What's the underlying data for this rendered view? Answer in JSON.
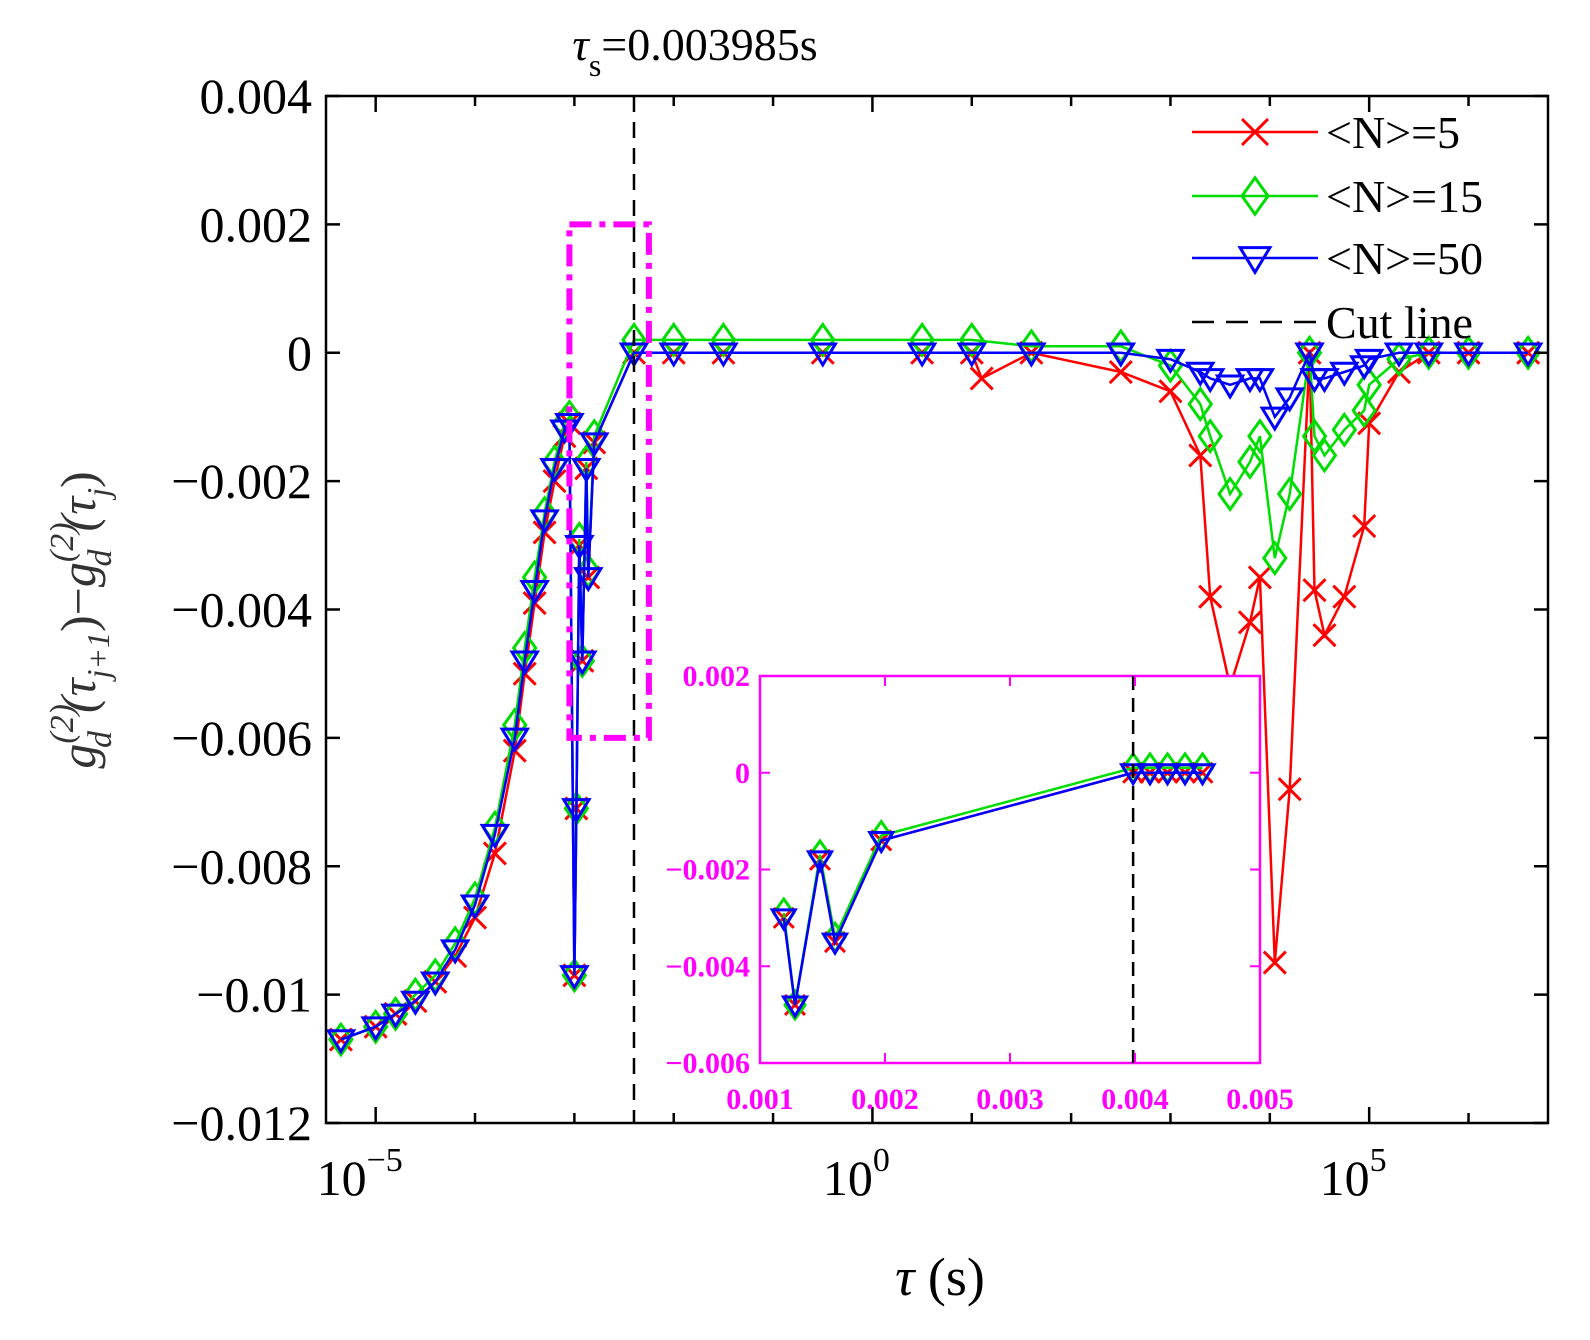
{
  "chart_data": [
    {
      "type": "line",
      "role": "main",
      "title_parts": {
        "tau": "τ",
        "sub": "s",
        "rest": "=0.003985s"
      },
      "xlabel_parts": {
        "tau": "τ",
        "unit": " (s)"
      },
      "ylabel_parts": {
        "g1": "g",
        "sup1": "(2)",
        "sub1": "d",
        "arg1": "(τ",
        "argsub1": "j+1",
        "close1": ")",
        "minus": "−",
        "g2": "g",
        "sup2": "(2)",
        "sub2": "d",
        "arg2": "(τ",
        "argsub2": "j",
        "close2": ")"
      },
      "xscale": "log",
      "xlim_log10": [
        -5.5,
        6.8
      ],
      "ylim": [
        -0.012,
        0.004
      ],
      "x_tick_log10": [
        -5,
        0,
        5
      ],
      "x_tick_base": "10",
      "x_tick_exponents": [
        "−5",
        "0",
        "5"
      ],
      "y_ticks": [
        0.004,
        0.002,
        0,
        -0.002,
        -0.004,
        -0.006,
        -0.008,
        -0.01,
        -0.012
      ],
      "y_tick_labels": [
        "0.004",
        "0.002",
        "0",
        "−0.002",
        "−0.004",
        "−0.006",
        "−0.008",
        "−0.01",
        "−0.012"
      ],
      "cut_line_log10": -2.4,
      "zoom_box": {
        "x_log10": [
          -3.05,
          -2.25
        ],
        "y": [
          -0.006,
          0.002
        ]
      },
      "legend": {
        "position": "top-right",
        "entries": [
          {
            "label": "<N>=5",
            "color": "#ff0000",
            "marker": "x"
          },
          {
            "label": "<N>=15",
            "color": "#00dd00",
            "marker": "diamond"
          },
          {
            "label": "<N>=50",
            "color": "#0000ff",
            "marker": "triangle-down"
          },
          {
            "label": "Cut line",
            "color": "#000000",
            "marker": "dashed"
          }
        ]
      },
      "series": [
        {
          "name": "<N>=5",
          "color": "#ff0000",
          "marker": "x",
          "points": [
            [
              -5.35,
              -0.0107
            ],
            [
              -5.0,
              -0.0105
            ],
            [
              -4.8,
              -0.0103
            ],
            [
              -4.6,
              -0.0101
            ],
            [
              -4.4,
              -0.0098
            ],
            [
              -4.2,
              -0.0094
            ],
            [
              -4.0,
              -0.0088
            ],
            [
              -3.8,
              -0.0078
            ],
            [
              -3.6,
              -0.0062
            ],
            [
              -3.5,
              -0.005
            ],
            [
              -3.4,
              -0.0039
            ],
            [
              -3.3,
              -0.0028
            ],
            [
              -3.2,
              -0.002
            ],
            [
              -3.1,
              -0.0013
            ],
            [
              -3.05,
              -0.0011
            ],
            [
              -3.0,
              -0.0097
            ],
            [
              -2.98,
              -0.0071
            ],
            [
              -2.95,
              -0.003
            ],
            [
              -2.92,
              -0.0048
            ],
            [
              -2.88,
              -0.0018
            ],
            [
              -2.86,
              -0.0035
            ],
            [
              -2.8,
              -0.0014
            ],
            [
              -2.4,
              0.0
            ],
            [
              -2.0,
              0.0
            ],
            [
              -1.5,
              0.0
            ],
            [
              -0.5,
              0.0
            ],
            [
              0.5,
              0.0
            ],
            [
              1.0,
              0.0
            ],
            [
              1.1,
              -0.0004
            ],
            [
              1.6,
              0.0
            ],
            [
              2.5,
              -0.0003
            ],
            [
              3.0,
              -0.0006
            ],
            [
              3.3,
              -0.0016
            ],
            [
              3.4,
              -0.0038
            ],
            [
              3.6,
              -0.0052
            ],
            [
              3.8,
              -0.0042
            ],
            [
              3.9,
              -0.0035
            ],
            [
              4.05,
              -0.0095
            ],
            [
              4.2,
              -0.0068
            ],
            [
              4.4,
              0.0
            ],
            [
              4.45,
              -0.0037
            ],
            [
              4.55,
              -0.0044
            ],
            [
              4.75,
              -0.0038
            ],
            [
              4.95,
              -0.0027
            ],
            [
              5.0,
              -0.0011
            ],
            [
              5.3,
              -0.0003
            ],
            [
              5.6,
              0.0
            ],
            [
              6.0,
              0.0
            ],
            [
              6.6,
              0.0
            ]
          ]
        },
        {
          "name": "<N>=15",
          "color": "#00dd00",
          "marker": "diamond",
          "points": [
            [
              -5.35,
              -0.0107
            ],
            [
              -5.0,
              -0.0105
            ],
            [
              -4.8,
              -0.0103
            ],
            [
              -4.6,
              -0.01
            ],
            [
              -4.4,
              -0.0097
            ],
            [
              -4.2,
              -0.0092
            ],
            [
              -4.0,
              -0.0085
            ],
            [
              -3.8,
              -0.0074
            ],
            [
              -3.6,
              -0.0058
            ],
            [
              -3.5,
              -0.0046
            ],
            [
              -3.4,
              -0.0035
            ],
            [
              -3.3,
              -0.0025
            ],
            [
              -3.2,
              -0.0017
            ],
            [
              -3.1,
              -0.0011
            ],
            [
              -3.05,
              -0.001
            ],
            [
              -3.0,
              -0.0097
            ],
            [
              -2.98,
              -0.0071
            ],
            [
              -2.95,
              -0.0029
            ],
            [
              -2.92,
              -0.0048
            ],
            [
              -2.88,
              -0.0017
            ],
            [
              -2.86,
              -0.0034
            ],
            [
              -2.8,
              -0.0013
            ],
            [
              -2.4,
              0.0002
            ],
            [
              -2.0,
              0.0002
            ],
            [
              -1.5,
              0.0002
            ],
            [
              -0.5,
              0.0002
            ],
            [
              0.5,
              0.0002
            ],
            [
              1.0,
              0.0002
            ],
            [
              1.6,
              0.0001
            ],
            [
              2.5,
              0.0001
            ],
            [
              3.0,
              -0.0002
            ],
            [
              3.3,
              -0.0008
            ],
            [
              3.4,
              -0.0013
            ],
            [
              3.6,
              -0.0022
            ],
            [
              3.8,
              -0.0017
            ],
            [
              3.9,
              -0.0013
            ],
            [
              4.05,
              -0.0032
            ],
            [
              4.2,
              -0.0022
            ],
            [
              4.4,
              0.0
            ],
            [
              4.45,
              -0.0013
            ],
            [
              4.55,
              -0.0016
            ],
            [
              4.75,
              -0.0012
            ],
            [
              4.95,
              -0.0009
            ],
            [
              5.0,
              -0.0005
            ],
            [
              5.3,
              -0.0001
            ],
            [
              5.6,
              0.0
            ],
            [
              6.0,
              0.0
            ],
            [
              6.6,
              0.0
            ]
          ]
        },
        {
          "name": "<N>=50",
          "color": "#0000ff",
          "marker": "triangle-down",
          "points": [
            [
              -5.35,
              -0.0107
            ],
            [
              -5.0,
              -0.0105
            ],
            [
              -4.8,
              -0.0103
            ],
            [
              -4.6,
              -0.0101
            ],
            [
              -4.4,
              -0.0098
            ],
            [
              -4.2,
              -0.0093
            ],
            [
              -4.0,
              -0.0086
            ],
            [
              -3.8,
              -0.0075
            ],
            [
              -3.6,
              -0.006
            ],
            [
              -3.5,
              -0.0048
            ],
            [
              -3.4,
              -0.0037
            ],
            [
              -3.3,
              -0.0026
            ],
            [
              -3.2,
              -0.0018
            ],
            [
              -3.1,
              -0.0012
            ],
            [
              -3.05,
              -0.0011
            ],
            [
              -3.0,
              -0.0097
            ],
            [
              -2.98,
              -0.0071
            ],
            [
              -2.95,
              -0.003
            ],
            [
              -2.92,
              -0.0048
            ],
            [
              -2.88,
              -0.0018
            ],
            [
              -2.86,
              -0.0035
            ],
            [
              -2.8,
              -0.0014
            ],
            [
              -2.4,
              0.0
            ],
            [
              -2.0,
              0.0
            ],
            [
              -1.5,
              0.0
            ],
            [
              -0.5,
              0.0
            ],
            [
              0.5,
              0.0
            ],
            [
              1.0,
              0.0
            ],
            [
              1.6,
              0.0
            ],
            [
              2.5,
              0.0
            ],
            [
              3.0,
              -0.0001
            ],
            [
              3.3,
              -0.0003
            ],
            [
              3.4,
              -0.0004
            ],
            [
              3.6,
              -0.0005
            ],
            [
              3.8,
              -0.0004
            ],
            [
              3.9,
              -0.0004
            ],
            [
              4.05,
              -0.001
            ],
            [
              4.2,
              -0.0007
            ],
            [
              4.4,
              0.0
            ],
            [
              4.45,
              -0.0004
            ],
            [
              4.55,
              -0.0004
            ],
            [
              4.75,
              -0.0003
            ],
            [
              4.95,
              -0.0002
            ],
            [
              5.0,
              -0.0001
            ],
            [
              5.3,
              0.0
            ],
            [
              5.6,
              0.0
            ],
            [
              6.0,
              0.0
            ],
            [
              6.6,
              0.0
            ]
          ]
        }
      ]
    },
    {
      "type": "line",
      "role": "inset",
      "xlim": [
        0.001,
        0.005
      ],
      "ylim": [
        -0.006,
        0.002
      ],
      "x_ticks": [
        0.001,
        0.002,
        0.003,
        0.004,
        0.005
      ],
      "x_tick_labels": [
        "0.001",
        "0.002",
        "0.003",
        "0.004",
        "0.005"
      ],
      "y_ticks": [
        0.002,
        0,
        -0.002,
        -0.004,
        -0.006
      ],
      "y_tick_labels": [
        "0.002",
        "0",
        "−0.002",
        "−0.004",
        "−0.006"
      ],
      "cut_line_x": 0.003985,
      "axis_color": "#ff00ff",
      "series": [
        {
          "name": "<N>=5",
          "color": "#ff0000",
          "marker": "x",
          "points": [
            [
              0.00119,
              -0.003
            ],
            [
              0.00128,
              -0.0048
            ],
            [
              0.00148,
              -0.0018
            ],
            [
              0.0016,
              -0.0035
            ],
            [
              0.00197,
              -0.0014
            ],
            [
              0.003985,
              0.0
            ],
            [
              0.00412,
              0.0
            ],
            [
              0.00426,
              0.0
            ],
            [
              0.0044,
              0.0
            ],
            [
              0.00454,
              0.0
            ]
          ]
        },
        {
          "name": "<N>=15",
          "color": "#00dd00",
          "marker": "diamond",
          "points": [
            [
              0.00119,
              -0.0029
            ],
            [
              0.00128,
              -0.0048
            ],
            [
              0.00148,
              -0.0017
            ],
            [
              0.0016,
              -0.0034
            ],
            [
              0.00197,
              -0.0013
            ],
            [
              0.003985,
              0.0001
            ],
            [
              0.00412,
              0.0001
            ],
            [
              0.00426,
              0.0001
            ],
            [
              0.0044,
              0.0001
            ],
            [
              0.00454,
              0.0001
            ]
          ]
        },
        {
          "name": "<N>=50",
          "color": "#0000ff",
          "marker": "triangle-down",
          "points": [
            [
              0.00119,
              -0.003
            ],
            [
              0.00128,
              -0.0048
            ],
            [
              0.00148,
              -0.0018
            ],
            [
              0.0016,
              -0.0035
            ],
            [
              0.00197,
              -0.0014
            ],
            [
              0.003985,
              0.0
            ],
            [
              0.00412,
              0.0
            ],
            [
              0.00426,
              0.0
            ],
            [
              0.0044,
              0.0
            ],
            [
              0.00454,
              0.0
            ]
          ]
        }
      ]
    }
  ]
}
